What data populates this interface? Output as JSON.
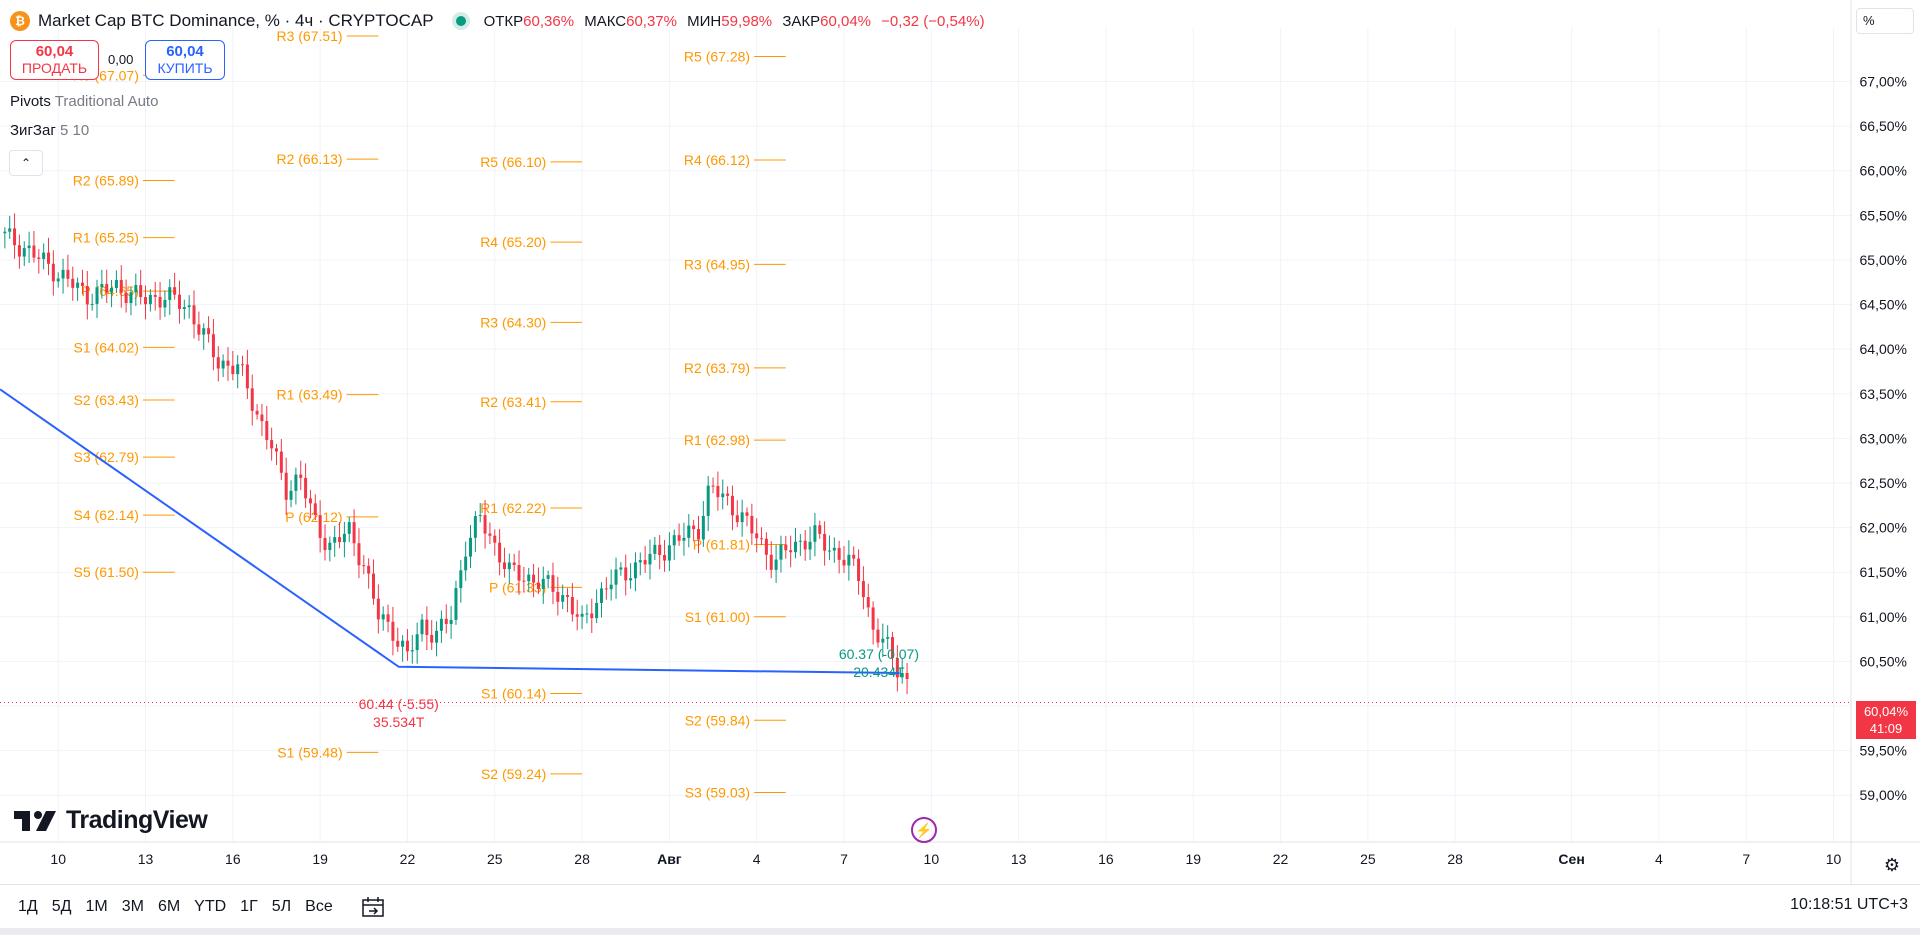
{
  "header": {
    "coin_icon": "bitcoin-icon",
    "coin_symbol": "₿",
    "title": "Market Cap BTC Dominance, % · 4ч · CRYPTOCAP",
    "status_color": "#089981",
    "ohlc": [
      {
        "label": "ОТКР",
        "value": "60,36%"
      },
      {
        "label": "МАКС",
        "value": "60,37%"
      },
      {
        "label": "МИН",
        "value": "59,98%"
      },
      {
        "label": "ЗАКР",
        "value": "60,04%"
      },
      {
        "label": "",
        "value": "−0,32 (−0,54%)"
      }
    ]
  },
  "trade": {
    "sell_price": "60,04",
    "sell_label": "ПРОДАТЬ",
    "spread": "0,00",
    "buy_price": "60,04",
    "buy_label": "КУПИТЬ"
  },
  "indicators": {
    "pivots_name": "Pivots",
    "pivots_params": "Traditional Auto",
    "zigzag_name": "ЗигЗаг",
    "zigzag_params": "5 10"
  },
  "price_tag": {
    "price": "60,04%",
    "countdown": "41:09"
  },
  "unit_label": "%",
  "logo_text": "TradingView",
  "ranges": [
    "1Д",
    "5Д",
    "1М",
    "3М",
    "6М",
    "YTD",
    "1Г",
    "5Л",
    "Все"
  ],
  "clock": "10:18:51 UTC+3",
  "chart_data": {
    "type": "candlestick",
    "timeframe": "4ч",
    "ylim": [
      58.7,
      67.6
    ],
    "y_ticks": [
      59.0,
      59.5,
      60.0,
      60.5,
      61.0,
      61.5,
      62.0,
      62.5,
      63.0,
      63.5,
      64.0,
      64.5,
      65.0,
      65.5,
      66.0,
      66.5,
      67.0
    ],
    "y_tick_labels": [
      "59,00%",
      "59,50%",
      "60,00%",
      "60,50%",
      "61,00%",
      "61,50%",
      "62,00%",
      "62,50%",
      "63,00%",
      "63,50%",
      "64,00%",
      "64,50%",
      "65,00%",
      "65,50%",
      "66,00%",
      "66,50%",
      "67,00%"
    ],
    "x_axis": [
      {
        "day": 10,
        "label": "10"
      },
      {
        "day": 13,
        "label": "13"
      },
      {
        "day": 16,
        "label": "16"
      },
      {
        "day": 19,
        "label": "19"
      },
      {
        "day": 22,
        "label": "22"
      },
      {
        "day": 25,
        "label": "25"
      },
      {
        "day": 28,
        "label": "28"
      },
      {
        "day": 31,
        "label": "Авг"
      },
      {
        "day": 34,
        "label": "4"
      },
      {
        "day": 37,
        "label": "7"
      },
      {
        "day": 40,
        "label": "10"
      },
      {
        "day": 43,
        "label": "13"
      },
      {
        "day": 46,
        "label": "16"
      },
      {
        "day": 49,
        "label": "19"
      },
      {
        "day": 52,
        "label": "22"
      },
      {
        "day": 55,
        "label": "25"
      },
      {
        "day": 58,
        "label": "28"
      },
      {
        "day": 62,
        "label": "Сен"
      },
      {
        "day": 65,
        "label": "4"
      },
      {
        "day": 68,
        "label": "7"
      },
      {
        "day": 71,
        "label": "10"
      }
    ],
    "x_range_days": [
      8.0,
      71.6
    ],
    "close_path": [
      [
        8.0,
        65.3
      ],
      [
        9.0,
        65.1
      ],
      [
        10.0,
        64.85
      ],
      [
        11.0,
        64.6
      ],
      [
        12.0,
        64.7
      ],
      [
        13.0,
        64.55
      ],
      [
        13.7,
        64.6
      ],
      [
        14.5,
        64.45
      ],
      [
        15.0,
        64.15
      ],
      [
        15.5,
        63.85
      ],
      [
        16.2,
        63.8
      ],
      [
        16.8,
        63.3
      ],
      [
        17.3,
        62.95
      ],
      [
        17.8,
        62.4
      ],
      [
        18.3,
        62.6
      ],
      [
        18.8,
        62.05
      ],
      [
        19.3,
        61.8
      ],
      [
        20.0,
        61.95
      ],
      [
        20.5,
        61.6
      ],
      [
        21.0,
        61.0
      ],
      [
        21.5,
        60.85
      ],
      [
        22.0,
        60.55
      ],
      [
        22.5,
        60.9
      ],
      [
        23.0,
        60.8
      ],
      [
        23.5,
        61.0
      ],
      [
        24.0,
        61.8
      ],
      [
        24.5,
        62.1
      ],
      [
        25.0,
        61.8
      ],
      [
        25.5,
        61.5
      ],
      [
        26.5,
        61.4
      ],
      [
        27.5,
        61.2
      ],
      [
        28.0,
        60.9
      ],
      [
        28.5,
        61.2
      ],
      [
        29.0,
        61.4
      ],
      [
        30.0,
        61.6
      ],
      [
        31.0,
        61.8
      ],
      [
        32.0,
        62.0
      ],
      [
        32.4,
        62.45
      ],
      [
        33.0,
        62.3
      ],
      [
        33.5,
        62.1
      ],
      [
        34.0,
        61.9
      ],
      [
        34.6,
        61.6
      ],
      [
        35.2,
        61.8
      ],
      [
        36.0,
        61.9
      ],
      [
        36.6,
        61.75
      ],
      [
        37.2,
        61.6
      ],
      [
        37.6,
        61.4
      ],
      [
        38.0,
        60.85
      ],
      [
        38.4,
        60.7
      ],
      [
        38.8,
        60.45
      ],
      [
        39.1,
        60.36
      ],
      [
        39.3,
        60.04
      ]
    ],
    "zigzag": [
      [
        8.0,
        63.55
      ],
      [
        21.7,
        60.44
      ],
      [
        38.9,
        60.37
      ]
    ],
    "zigzag_color": "#2962ff",
    "pivot_color": "#ff9800",
    "pivots": [
      {
        "x0": 7.0,
        "x1": 14.0,
        "levels": [
          [
            "R3",
            "67.07"
          ],
          [
            "R2",
            "65.89"
          ],
          [
            "R1",
            "65.25"
          ],
          [
            "P",
            "64.65"
          ],
          [
            "S1",
            "64.02"
          ],
          [
            "S2",
            "63.43"
          ],
          [
            "S3",
            "62.79"
          ],
          [
            "S4",
            "62.14"
          ],
          [
            "S5",
            "61.50"
          ]
        ]
      },
      {
        "x0": 14.0,
        "x1": 21.0,
        "levels": [
          [
            "R3",
            "67.51"
          ],
          [
            "R2",
            "66.13"
          ],
          [
            "R1",
            "63.49"
          ],
          [
            "P",
            "62.12"
          ],
          [
            "S1",
            "59.48"
          ]
        ]
      },
      {
        "x0": 21.0,
        "x1": 28.0,
        "levels": [
          [
            "R5",
            "66.10"
          ],
          [
            "R4",
            "65.20"
          ],
          [
            "R3",
            "64.30"
          ],
          [
            "R2",
            "63.41"
          ],
          [
            "R1",
            "62.22"
          ],
          [
            "P",
            "61.33"
          ],
          [
            "S1",
            "60.14"
          ],
          [
            "S2",
            "59.24"
          ]
        ]
      },
      {
        "x0": 28.0,
        "x1": 35.0,
        "levels": [
          [
            "R5",
            "67.28"
          ],
          [
            "R4",
            "66.12"
          ],
          [
            "R3",
            "64.95"
          ],
          [
            "R2",
            "63.79"
          ],
          [
            "R1",
            "62.98"
          ],
          [
            "P",
            "61.81"
          ],
          [
            "S1",
            "61.00"
          ],
          [
            "S2",
            "59.84"
          ],
          [
            "S3",
            "59.03"
          ]
        ]
      }
    ],
    "annotations": [
      {
        "x": 21.7,
        "y": 60.44,
        "line1": "60.44 (-5.55)",
        "line2": "35.534T",
        "color": "#f23645",
        "below": true
      },
      {
        "x": 38.2,
        "y": 60.37,
        "line1": "60.37 (-0.07)",
        "line2": "20.434T",
        "color": "#089981",
        "below": false
      }
    ],
    "last_price": 60.04,
    "up_color": "#089981",
    "down_color": "#f23645"
  }
}
